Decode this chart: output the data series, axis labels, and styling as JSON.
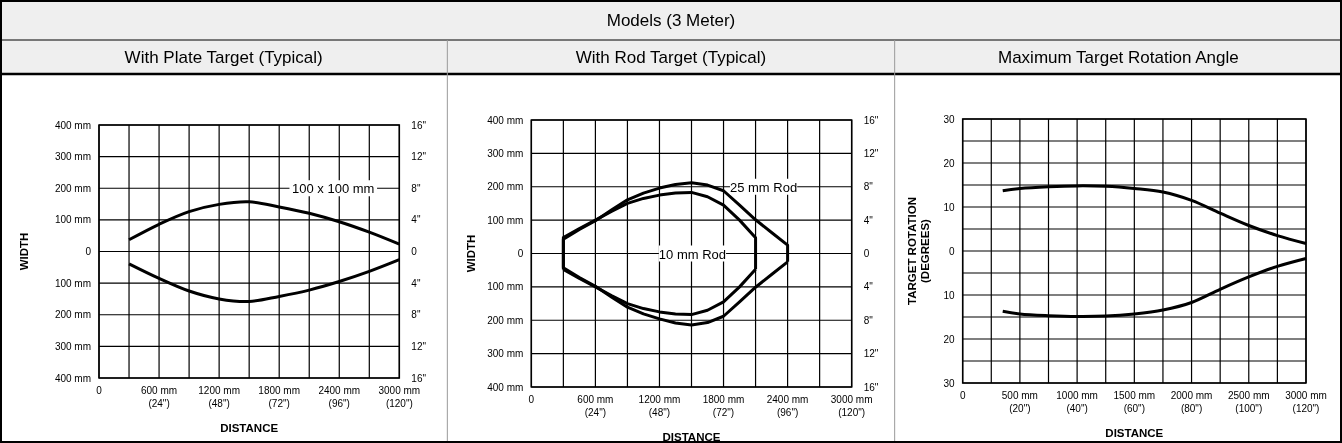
{
  "chart_data": [
    {
      "type": "line",
      "title": "With Plate Target (Typical)",
      "annotations": [
        "Models (3 Meter)"
      ],
      "xlabel": "DISTANCE",
      "ylabel": "WIDTH",
      "grid": true,
      "xlim": [
        0,
        3000
      ],
      "xticks": [
        {
          "value": 0,
          "label": "0"
        },
        {
          "value": 300,
          "label": null
        },
        {
          "value": 600,
          "label": "600 mm"
        },
        {
          "value": 900,
          "label": null
        },
        {
          "value": 1200,
          "label": "1200 mm"
        },
        {
          "value": 1500,
          "label": null
        },
        {
          "value": 1800,
          "label": "1800 mm"
        },
        {
          "value": 2100,
          "label": null
        },
        {
          "value": 2400,
          "label": "2400 mm"
        },
        {
          "value": 2700,
          "label": null
        },
        {
          "value": 3000,
          "label": "3000 mm"
        }
      ],
      "x2lim": [
        0,
        120
      ],
      "x2ticks": [
        {
          "value": 24,
          "label": "(24\")"
        },
        {
          "value": 48,
          "label": "(48\")"
        },
        {
          "value": 72,
          "label": "(72\")"
        },
        {
          "value": 96,
          "label": "(96\")"
        },
        {
          "value": 120,
          "label": "(120\")"
        }
      ],
      "ylim": [
        -400,
        400
      ],
      "yticks": [
        {
          "value": -400,
          "label": "400 mm"
        },
        {
          "value": -300,
          "label": "300 mm"
        },
        {
          "value": -200,
          "label": "200 mm"
        },
        {
          "value": -100,
          "label": "100 mm"
        },
        0,
        {
          "value": 100,
          "label": "100 mm"
        },
        {
          "value": 200,
          "label": "200 mm"
        },
        {
          "value": 300,
          "label": "300 mm"
        },
        {
          "value": 400,
          "label": "400 mm"
        }
      ],
      "y2lim": [
        -16,
        16
      ],
      "y2ticks": [
        {
          "value": -16,
          "label": "16\""
        },
        {
          "value": -12,
          "label": "12\""
        },
        {
          "value": -8,
          "label": "8\""
        },
        {
          "value": -4,
          "label": "4\""
        },
        0,
        {
          "value": 4,
          "label": "4\""
        },
        {
          "value": 8,
          "label": "8\""
        },
        {
          "value": 12,
          "label": "12\""
        },
        {
          "value": 16,
          "label": "16\""
        }
      ],
      "series": [
        {
          "name": "100 x 100 mm",
          "color": "#000000",
          "x": [
            300,
            600,
            900,
            1200,
            1500,
            1800,
            2100,
            2400,
            2700,
            3000
          ],
          "values": [
            37,
            86,
            126,
            149,
            157,
            141,
            121,
            94,
            61,
            23
          ]
        },
        {
          "color": "#000000",
          "x": [
            300,
            600,
            900,
            1200,
            1500,
            1800,
            2100,
            2400,
            2700,
            3000
          ],
          "values": [
            -39,
            -85,
            -125,
            -150,
            -158,
            -142,
            -122,
            -95,
            -63,
            -26
          ]
        }
      ]
    },
    {
      "type": "line",
      "title": "With Rod Target (Typical)",
      "xlabel": "DISTANCE",
      "ylabel": "WIDTH",
      "grid": true,
      "xlim": [
        0,
        3000
      ],
      "xticks": [
        {
          "value": 0,
          "label": "0"
        },
        {
          "value": 300,
          "label": null
        },
        {
          "value": 600,
          "label": "600 mm"
        },
        {
          "value": 900,
          "label": null
        },
        {
          "value": 1200,
          "label": "1200 mm"
        },
        {
          "value": 1500,
          "label": null
        },
        {
          "value": 1800,
          "label": "1800 mm"
        },
        {
          "value": 2100,
          "label": null
        },
        {
          "value": 2400,
          "label": "2400 mm"
        },
        {
          "value": 2700,
          "label": null
        },
        {
          "value": 3000,
          "label": "3000 mm"
        }
      ],
      "x2lim": [
        0,
        120
      ],
      "x2ticks": [
        {
          "value": 24,
          "label": "(24\")"
        },
        {
          "value": 48,
          "label": "(48\")"
        },
        {
          "value": 72,
          "label": "(72\")"
        },
        {
          "value": 96,
          "label": "(96\")"
        },
        {
          "value": 120,
          "label": "(120\")"
        }
      ],
      "ylim": [
        -400,
        400
      ],
      "yticks": [
        {
          "value": -400,
          "label": "400 mm"
        },
        {
          "value": -300,
          "label": "300 mm"
        },
        {
          "value": -200,
          "label": "200 mm"
        },
        {
          "value": -100,
          "label": "100 mm"
        },
        0,
        {
          "value": 100,
          "label": "100 mm"
        },
        {
          "value": 200,
          "label": "200 mm"
        },
        {
          "value": 300,
          "label": "300 mm"
        },
        {
          "value": 400,
          "label": "400 mm"
        }
      ],
      "y2lim": [
        -16,
        16
      ],
      "y2ticks": [
        {
          "value": -16,
          "label": "16\""
        },
        {
          "value": -12,
          "label": "12\""
        },
        {
          "value": -8,
          "label": "8\""
        },
        {
          "value": -4,
          "label": "4\""
        },
        0,
        {
          "value": 4,
          "label": "4\""
        },
        {
          "value": 8,
          "label": "8\""
        },
        {
          "value": 12,
          "label": "12\""
        },
        {
          "value": 16,
          "label": "16\""
        }
      ],
      "series": [
        {
          "name": "25 mm Rod",
          "color": "#000000",
          "x": [
            300,
            300,
            450,
            600,
            750,
            900,
            1050,
            1200,
            1350,
            1500,
            1650,
            1800,
            1950,
            2100,
            2250,
            2400,
            2400
          ],
          "values": [
            -43,
            43,
            72,
            98,
            130,
            161,
            181,
            196,
            207,
            212,
            205,
            188,
            145,
            101,
            63,
            25,
            -25
          ]
        },
        {
          "color": "#000000",
          "x": [
            300,
            450,
            600,
            750,
            900,
            1050,
            1200,
            1350,
            1500,
            1650,
            1800,
            1950,
            2100,
            2250,
            2400
          ],
          "values": [
            -43,
            -72,
            -98,
            -130,
            -161,
            -181,
            -196,
            -208,
            -214,
            -207,
            -188,
            -145,
            -101,
            -63,
            -25
          ]
        },
        {
          "name": "10 mm Rod",
          "color": "#000000",
          "x": [
            300,
            300,
            450,
            600,
            750,
            900,
            1050,
            1200,
            1350,
            1500,
            1650,
            1800,
            1950,
            2100,
            2100
          ],
          "values": [
            -48,
            48,
            75,
            100,
            126,
            150,
            165,
            175,
            181,
            183,
            170,
            145,
            100,
            47,
            -47
          ]
        },
        {
          "color": "#000000",
          "x": [
            300,
            450,
            600,
            750,
            900,
            1050,
            1200,
            1350,
            1500,
            1650,
            1800,
            1950,
            2100
          ],
          "values": [
            -48,
            -75,
            -100,
            -126,
            -150,
            -165,
            -175,
            -181,
            -183,
            -170,
            -145,
            -100,
            -47
          ]
        }
      ]
    },
    {
      "type": "line",
      "title": "Maximum Target Rotation Angle",
      "xlabel": "DISTANCE",
      "ylabel": "TARGET ROTATION\n(DEGREES)",
      "grid": true,
      "xlim": [
        0,
        3000
      ],
      "xticks": [
        {
          "value": 0,
          "label": "0"
        },
        {
          "value": 250,
          "label": null
        },
        {
          "value": 500,
          "label": "500 mm"
        },
        {
          "value": 750,
          "label": null
        },
        {
          "value": 1000,
          "label": "1000 mm"
        },
        {
          "value": 1250,
          "label": null
        },
        {
          "value": 1500,
          "label": "1500 mm"
        },
        {
          "value": 1750,
          "label": null
        },
        {
          "value": 2000,
          "label": "2000 mm"
        },
        {
          "value": 2250,
          "label": null
        },
        {
          "value": 2500,
          "label": "2500 mm"
        },
        {
          "value": 2750,
          "label": null
        },
        {
          "value": 3000,
          "label": "3000 mm"
        }
      ],
      "x2lim": [
        0,
        120
      ],
      "x2ticks": [
        {
          "value": 20,
          "label": "(20\")"
        },
        {
          "value": 40,
          "label": "(40\")"
        },
        {
          "value": 60,
          "label": "(60\")"
        },
        {
          "value": 80,
          "label": "(80\")"
        },
        {
          "value": 100,
          "label": "(100\")"
        },
        {
          "value": 120,
          "label": "(120\")"
        }
      ],
      "ylim": [
        -30,
        30
      ],
      "yticks": [
        {
          "value": -30,
          "label": "30"
        },
        {
          "value": -25,
          "label": null
        },
        {
          "value": -20,
          "label": "20"
        },
        {
          "value": -15,
          "label": null
        },
        {
          "value": -10,
          "label": "10"
        },
        {
          "value": -5,
          "label": null
        },
        0,
        {
          "value": 5,
          "label": null
        },
        10,
        {
          "value": 15,
          "label": null
        },
        20,
        {
          "value": 25,
          "label": null
        },
        30
      ],
      "series": [
        {
          "color": "#000000",
          "x": [
            350,
            500,
            750,
            1000,
            1250,
            1500,
            1750,
            2000,
            2250,
            2500,
            2750,
            3000
          ],
          "values": [
            13.7,
            14.2,
            14.6,
            14.8,
            14.7,
            14.2,
            13.4,
            11.5,
            8.6,
            5.8,
            3.5,
            1.7
          ]
        },
        {
          "color": "#000000",
          "x": [
            350,
            500,
            750,
            1000,
            1250,
            1500,
            1750,
            2000,
            2250,
            2500,
            2750,
            3000
          ],
          "values": [
            -13.7,
            -14.3,
            -14.7,
            -14.9,
            -14.8,
            -14.3,
            -13.4,
            -11.7,
            -8.7,
            -5.9,
            -3.5,
            -1.7
          ]
        }
      ]
    }
  ]
}
